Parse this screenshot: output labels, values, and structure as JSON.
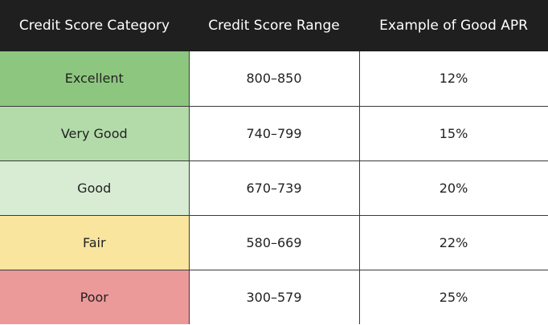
{
  "table": {
    "headers": [
      "Credit Score Category",
      "Credit Score Range",
      "Example of Good APR"
    ],
    "rows": [
      {
        "category": "Excellent",
        "range": "800–850",
        "apr": "12%",
        "color": "#8dc77f"
      },
      {
        "category": "Very Good",
        "range": "740–799",
        "apr": "15%",
        "color": "#b3dbaa"
      },
      {
        "category": "Good",
        "range": "670–739",
        "apr": "20%",
        "color": "#d8ecd4"
      },
      {
        "category": "Fair",
        "range": "580–669",
        "apr": "22%",
        "color": "#f9e59e"
      },
      {
        "category": "Poor",
        "range": "300–579",
        "apr": "25%",
        "color": "#ec999a"
      }
    ]
  },
  "colors": {
    "header_bg": "#1f1f1f",
    "header_text": "#ffffff"
  }
}
